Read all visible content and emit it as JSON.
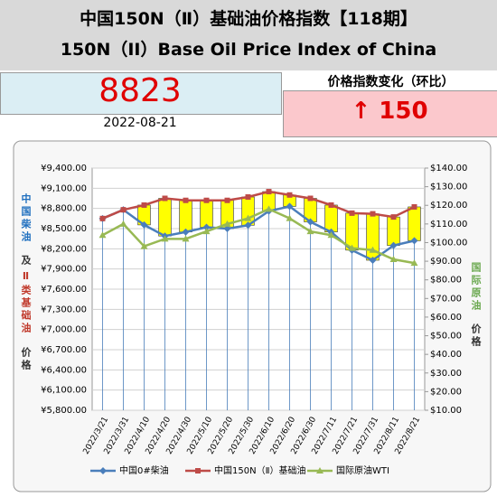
{
  "header": {
    "title_cn": "中国150N（Ⅱ）基础油价格指数【118期】",
    "title_en": "150N（II）Base Oil Price Index of China"
  },
  "index": {
    "value": "8823",
    "date": "2022-08-21",
    "change_title": "价格指数变化（环比）",
    "change": "↑ 150"
  },
  "chart_data": {
    "type": "line",
    "left_axis_label": [
      "中国柴油",
      "及",
      "Ⅱ类基础油",
      "价格"
    ],
    "right_axis_label": [
      "国际原油",
      "价格"
    ],
    "categories": [
      "2022/3/21",
      "2022/3/31",
      "2022/4/10",
      "2022/4/20",
      "2022/4/30",
      "2022/5/10",
      "2022/5/20",
      "2022/5/30",
      "2022/6/10",
      "2022/6/20",
      "2022/6/30",
      "2022/7/11",
      "2022/7/21",
      "2022/7/31",
      "2022/8/11",
      "2022/8/21"
    ],
    "series": [
      {
        "name": "中国0#柴油",
        "color": "#4a7ebb",
        "marker": "diamond",
        "values": [
          8650,
          8780,
          8555,
          8390,
          8450,
          8520,
          8500,
          8550,
          8760,
          8830,
          8600,
          8450,
          8180,
          8030,
          8250,
          8320
        ]
      },
      {
        "name": "中国150N（Ⅱ）基础油",
        "color": "#be4b48",
        "marker": "square",
        "values": [
          8650,
          8780,
          8850,
          8950,
          8920,
          8920,
          8920,
          8970,
          9050,
          9000,
          8950,
          8850,
          8730,
          8720,
          8673,
          8823
        ]
      },
      {
        "name": "国际原油WTI",
        "color": "#98b954",
        "marker": "triangle",
        "axis": "y2",
        "values": [
          104,
          110,
          98,
          102,
          102,
          106,
          110,
          113,
          118,
          113,
          106,
          104,
          97,
          96,
          91,
          89
        ]
      }
    ],
    "ylim": [
      5800,
      9400
    ],
    "yticks": [
      {
        "value": 5800,
        "label": "¥5,800.00"
      },
      {
        "value": 6100,
        "label": "¥6,100.00"
      },
      {
        "value": 6400,
        "label": "¥6,400.00"
      },
      {
        "value": 6700,
        "label": "¥6,700.00"
      },
      {
        "value": 7000,
        "label": "¥7,000.00"
      },
      {
        "value": 7300,
        "label": "¥7,300.00"
      },
      {
        "value": 7600,
        "label": "¥7,600.00"
      },
      {
        "value": 7900,
        "label": "¥7,900.00"
      },
      {
        "value": 8200,
        "label": "¥8,200.00"
      },
      {
        "value": 8500,
        "label": "¥8,500.00"
      },
      {
        "value": 8800,
        "label": "¥8,800.00"
      },
      {
        "value": 9100,
        "label": "¥9,100.00"
      },
      {
        "value": 9400,
        "label": "¥9,400.00"
      }
    ],
    "y2lim": [
      10,
      140
    ],
    "y2ticks": [
      {
        "value": 10,
        "label": "$10.00"
      },
      {
        "value": 20,
        "label": "$20.00"
      },
      {
        "value": 30,
        "label": "$30.00"
      },
      {
        "value": 40,
        "label": "$40.00"
      },
      {
        "value": 50,
        "label": "$50.00"
      },
      {
        "value": 60,
        "label": "$60.00"
      },
      {
        "value": 70,
        "label": "$70.00"
      },
      {
        "value": 80,
        "label": "$80.00"
      },
      {
        "value": 90,
        "label": "$90.00"
      },
      {
        "value": 100,
        "label": "$100.00"
      },
      {
        "value": 110,
        "label": "$110.00"
      },
      {
        "value": 120,
        "label": "$120.00"
      },
      {
        "value": 130,
        "label": "$130.00"
      },
      {
        "value": 140,
        "label": "$140.00"
      }
    ],
    "updown_color": "#ffff00",
    "grid": true
  }
}
